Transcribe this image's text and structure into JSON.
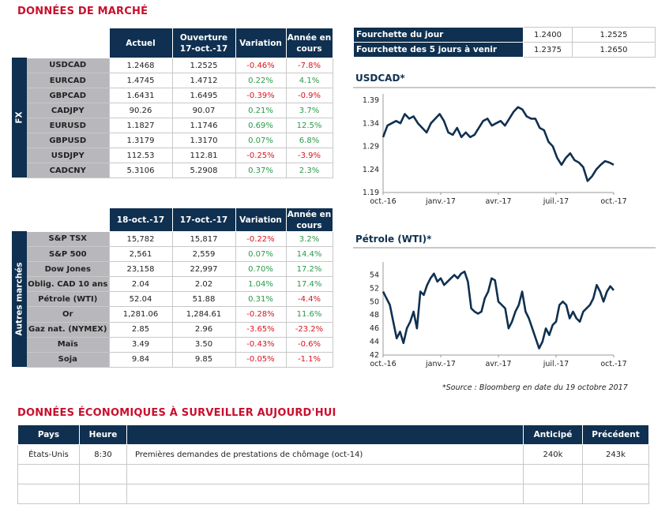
{
  "titles": {
    "market": "DONNÉES DE MARCHÉ",
    "economic": "DONNÉES ÉCONOMIQUES À SURVEILLER AUJOURD'HUI"
  },
  "fx": {
    "side_label": "FX",
    "headers": [
      "Actuel",
      "Ouverture 17-oct.-17",
      "Variation",
      "Année en cours"
    ],
    "rows": [
      {
        "name": "USDCAD",
        "actuel": "1.2468",
        "ouverture": "1.2525",
        "variation": "-0.46%",
        "annee": "-7.8%"
      },
      {
        "name": "EURCAD",
        "actuel": "1.4745",
        "ouverture": "1.4712",
        "variation": "0.22%",
        "annee": "4.1%"
      },
      {
        "name": "GBPCAD",
        "actuel": "1.6431",
        "ouverture": "1.6495",
        "variation": "-0.39%",
        "annee": "-0.9%"
      },
      {
        "name": "CADJPY",
        "actuel": "90.26",
        "ouverture": "90.07",
        "variation": "0.21%",
        "annee": "3.7%"
      },
      {
        "name": "EURUSD",
        "actuel": "1.1827",
        "ouverture": "1.1746",
        "variation": "0.69%",
        "annee": "12.5%"
      },
      {
        "name": "GBPUSD",
        "actuel": "1.3179",
        "ouverture": "1.3170",
        "variation": "0.07%",
        "annee": "6.8%"
      },
      {
        "name": "USDJPY",
        "actuel": "112.53",
        "ouverture": "112.81",
        "variation": "-0.25%",
        "annee": "-3.9%"
      },
      {
        "name": "CADCNY",
        "actuel": "5.3106",
        "ouverture": "5.2908",
        "variation": "0.37%",
        "annee": "2.3%"
      }
    ]
  },
  "other": {
    "side_label": "Autres marchés",
    "headers": [
      "18-oct.-17",
      "17-oct.-17",
      "Variation",
      "Année en cours"
    ],
    "rows": [
      {
        "name": "S&P TSX",
        "actuel": "15,782",
        "ouverture": "15,817",
        "variation": "-0.22%",
        "annee": "3.2%"
      },
      {
        "name": "S&P 500",
        "actuel": "2,561",
        "ouverture": "2,559",
        "variation": "0.07%",
        "annee": "14.4%"
      },
      {
        "name": "Dow Jones",
        "actuel": "23,158",
        "ouverture": "22,997",
        "variation": "0.70%",
        "annee": "17.2%"
      },
      {
        "name": "Oblig. CAD 10 ans",
        "actuel": "2.04",
        "ouverture": "2.02",
        "variation": "1.04%",
        "annee": "17.4%"
      },
      {
        "name": "Pétrole (WTI)",
        "actuel": "52.04",
        "ouverture": "51.88",
        "variation": "0.31%",
        "annee": "-4.4%"
      },
      {
        "name": "Or",
        "actuel": "1,281.06",
        "ouverture": "1,284.61",
        "variation": "-0.28%",
        "annee": "11.6%"
      },
      {
        "name": "Gaz nat. (NYMEX)",
        "actuel": "2.85",
        "ouverture": "2.96",
        "variation": "-3.65%",
        "annee": "-23.2%"
      },
      {
        "name": "Maïs",
        "actuel": "3.49",
        "ouverture": "3.50",
        "variation": "-0.43%",
        "annee": "-0.6%"
      },
      {
        "name": "Soja",
        "actuel": "9.84",
        "ouverture": "9.85",
        "variation": "-0.05%",
        "annee": "-1.1%"
      }
    ]
  },
  "range": {
    "rows": [
      {
        "label": "Fourchette du jour",
        "low": "1.2400",
        "high": "1.2525"
      },
      {
        "label": "Fourchette des 5 jours à venir",
        "low": "1.2375",
        "high": "1.2650"
      }
    ]
  },
  "colors": {
    "navy": "#0f3050",
    "red": "#d8141e",
    "green": "#2a9a48",
    "title_red": "#c8102e"
  },
  "chart_data": [
    {
      "type": "line",
      "title": "USDCAD*",
      "ylim": [
        1.19,
        1.39
      ],
      "yticks": [
        "1.39",
        "1.34",
        "1.29",
        "1.24",
        "1.19"
      ],
      "xticks": [
        "oct.-16",
        "janv.-17",
        "avr.-17",
        "juil.-17",
        "oct.-17"
      ],
      "values": [
        1.31,
        1.335,
        1.34,
        1.345,
        1.34,
        1.36,
        1.35,
        1.355,
        1.34,
        1.33,
        1.32,
        1.34,
        1.35,
        1.36,
        1.345,
        1.32,
        1.315,
        1.33,
        1.31,
        1.32,
        1.31,
        1.315,
        1.33,
        1.345,
        1.35,
        1.335,
        1.34,
        1.345,
        1.335,
        1.35,
        1.365,
        1.375,
        1.37,
        1.355,
        1.35,
        1.35,
        1.33,
        1.325,
        1.3,
        1.29,
        1.265,
        1.25,
        1.265,
        1.275,
        1.26,
        1.255,
        1.245,
        1.215,
        1.225,
        1.24,
        1.25,
        1.258,
        1.255,
        1.25
      ]
    },
    {
      "type": "line",
      "title": "Pétrole (WTI)*",
      "ylim": [
        42,
        55
      ],
      "yticks": [
        "54",
        "52",
        "50",
        "48",
        "46",
        "44",
        "42"
      ],
      "xticks": [
        "oct.-16",
        "janv.-17",
        "avr.-17",
        "juil.-17",
        "oct.-17"
      ],
      "values": [
        51.5,
        50.5,
        49.5,
        47,
        44.5,
        45.5,
        43.8,
        46,
        47,
        48.5,
        46,
        51.5,
        51,
        52.5,
        53.5,
        54.2,
        53,
        53.5,
        52.5,
        53,
        53.5,
        54,
        53.5,
        54.2,
        54.5,
        53,
        49,
        48.5,
        48.2,
        48.5,
        50.5,
        51.5,
        53.5,
        53.2,
        50,
        49.5,
        49,
        46,
        47,
        48.5,
        49.5,
        51.5,
        48.5,
        47.5,
        46,
        44.5,
        43,
        44,
        46,
        45,
        46.5,
        47,
        49.5,
        50,
        49.5,
        47.5,
        48.5,
        47.5,
        47,
        48.5,
        49,
        49.5,
        50.5,
        52.5,
        51.5,
        50,
        51.5,
        52.3,
        51.7
      ]
    }
  ],
  "source": "*Source : Bloomberg en date du  19 octobre 2017",
  "econ": {
    "headers": [
      "Pays",
      "Heure",
      "",
      "Anticipé",
      "Précédent"
    ],
    "rows": [
      {
        "pays": "États-Unis",
        "heure": "8:30",
        "desc": "Premières demandes de prestations de chômage (oct-14)",
        "anticipe": "240k",
        "precedent": "243k"
      },
      {
        "pays": "",
        "heure": "",
        "desc": "",
        "anticipe": "",
        "precedent": ""
      },
      {
        "pays": "",
        "heure": "",
        "desc": "",
        "anticipe": "",
        "precedent": ""
      }
    ]
  }
}
